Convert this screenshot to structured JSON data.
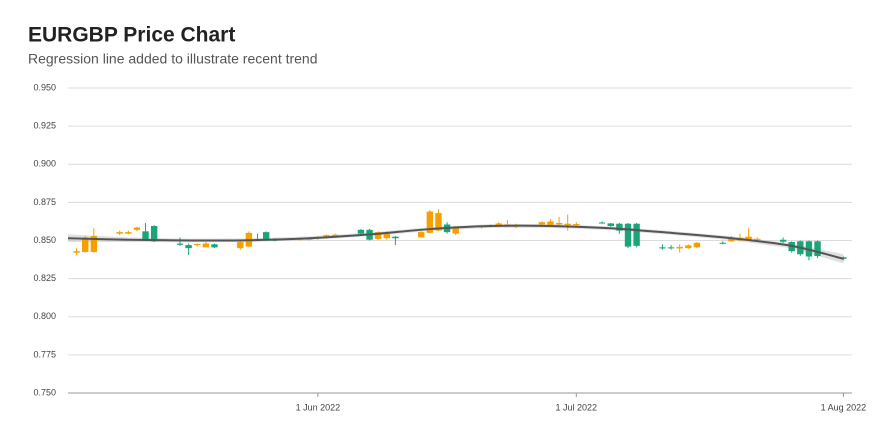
{
  "chart_data": {
    "type": "candlestick",
    "title": "EURGBP Price Chart",
    "subtitle": "Regression line added to illustrate recent trend",
    "up_color": "#f5a000",
    "down_color": "#1aa578",
    "grid": true,
    "xlim": [
      "2022-05-03",
      "2022-08-02"
    ],
    "xticks": [
      {
        "value": "2022-06-01",
        "label": "1 Jun 2022"
      },
      {
        "value": "2022-07-01",
        "label": "1 Jul 2022"
      },
      {
        "value": "2022-08-01",
        "label": "1 Aug 2022"
      }
    ],
    "ylim": [
      0.75,
      0.95
    ],
    "yticks": [
      {
        "value": 0.75,
        "label": "0.750"
      },
      {
        "value": 0.775,
        "label": "0.775"
      },
      {
        "value": 0.8,
        "label": "0.800"
      },
      {
        "value": 0.825,
        "label": "0.825"
      },
      {
        "value": 0.85,
        "label": "0.850"
      },
      {
        "value": 0.875,
        "label": "0.875"
      },
      {
        "value": 0.9,
        "label": "0.900"
      },
      {
        "value": 0.925,
        "label": "0.925"
      },
      {
        "value": 0.95,
        "label": "0.950"
      }
    ],
    "x": [
      "2022-05-04",
      "2022-05-05",
      "2022-05-06",
      "2022-05-09",
      "2022-05-10",
      "2022-05-11",
      "2022-05-12",
      "2022-05-13",
      "2022-05-16",
      "2022-05-17",
      "2022-05-18",
      "2022-05-19",
      "2022-05-20",
      "2022-05-23",
      "2022-05-24",
      "2022-05-25",
      "2022-05-26",
      "2022-05-27",
      "2022-05-30",
      "2022-05-31",
      "2022-06-01",
      "2022-06-02",
      "2022-06-03",
      "2022-06-06",
      "2022-06-07",
      "2022-06-08",
      "2022-06-09",
      "2022-06-10",
      "2022-06-13",
      "2022-06-14",
      "2022-06-15",
      "2022-06-16",
      "2022-06-17",
      "2022-06-20",
      "2022-06-21",
      "2022-06-22",
      "2022-06-23",
      "2022-06-24",
      "2022-06-27",
      "2022-06-28",
      "2022-06-29",
      "2022-06-30",
      "2022-07-01",
      "2022-07-04",
      "2022-07-05",
      "2022-07-06",
      "2022-07-07",
      "2022-07-08",
      "2022-07-11",
      "2022-07-12",
      "2022-07-13",
      "2022-07-14",
      "2022-07-15",
      "2022-07-18",
      "2022-07-19",
      "2022-07-20",
      "2022-07-21",
      "2022-07-22",
      "2022-07-25",
      "2022-07-26",
      "2022-07-27",
      "2022-07-28",
      "2022-07-29",
      "2022-08-01"
    ],
    "open": [
      0.842,
      0.8425,
      0.8425,
      0.8545,
      0.8545,
      0.857,
      0.856,
      0.8595,
      0.848,
      0.847,
      0.847,
      0.8455,
      0.8475,
      0.845,
      0.846,
      0.851,
      0.8555,
      0.8505,
      0.8505,
      0.8505,
      0.8515,
      0.8525,
      0.853,
      0.857,
      0.857,
      0.851,
      0.8515,
      0.8525,
      0.852,
      0.855,
      0.8565,
      0.8605,
      0.8545,
      0.859,
      0.8592,
      0.8595,
      0.8595,
      0.859,
      0.8605,
      0.8602,
      0.8605,
      0.86,
      0.86,
      0.8618,
      0.8612,
      0.861,
      0.861,
      0.861,
      0.8455,
      0.8455,
      0.8448,
      0.845,
      0.8455,
      0.8485,
      0.8495,
      0.85,
      0.8505,
      0.8505,
      0.8505,
      0.849,
      0.8495,
      0.8495,
      0.8495,
      0.839
    ],
    "high": [
      0.845,
      0.853,
      0.858,
      0.8565,
      0.8565,
      0.859,
      0.8615,
      0.86,
      0.852,
      0.848,
      0.848,
      0.849,
      0.848,
      0.85,
      0.856,
      0.8545,
      0.856,
      0.8515,
      0.8515,
      0.852,
      0.853,
      0.854,
      0.8545,
      0.8575,
      0.8575,
      0.856,
      0.856,
      0.853,
      0.856,
      0.87,
      0.8705,
      0.862,
      0.8595,
      0.86,
      0.8605,
      0.862,
      0.8635,
      0.861,
      0.8625,
      0.864,
      0.8655,
      0.867,
      0.862,
      0.8625,
      0.8615,
      0.8615,
      0.8615,
      0.8615,
      0.8475,
      0.847,
      0.8475,
      0.8475,
      0.849,
      0.8495,
      0.853,
      0.8545,
      0.858,
      0.852,
      0.852,
      0.8495,
      0.85,
      0.85,
      0.85,
      0.8395
    ],
    "low": [
      0.8405,
      0.842,
      0.842,
      0.8535,
      0.854,
      0.856,
      0.85,
      0.849,
      0.8465,
      0.8405,
      0.846,
      0.8455,
      0.845,
      0.844,
      0.8455,
      0.8495,
      0.85,
      0.8495,
      0.85,
      0.85,
      0.8505,
      0.852,
      0.8525,
      0.8535,
      0.85,
      0.8505,
      0.8505,
      0.847,
      0.852,
      0.8545,
      0.856,
      0.8545,
      0.8535,
      0.858,
      0.8585,
      0.859,
      0.859,
      0.858,
      0.86,
      0.86,
      0.86,
      0.8565,
      0.859,
      0.861,
      0.859,
      0.8545,
      0.845,
      0.8455,
      0.844,
      0.844,
      0.842,
      0.8445,
      0.845,
      0.8475,
      0.849,
      0.8495,
      0.85,
      0.85,
      0.8485,
      0.842,
      0.84,
      0.837,
      0.8385,
      0.837
    ],
    "close": [
      0.843,
      0.852,
      0.853,
      0.8555,
      0.8555,
      0.8585,
      0.851,
      0.8495,
      0.8472,
      0.845,
      0.8478,
      0.848,
      0.8455,
      0.849,
      0.855,
      0.85,
      0.8505,
      0.85,
      0.8512,
      0.8515,
      0.8522,
      0.8535,
      0.8538,
      0.8545,
      0.8505,
      0.8555,
      0.855,
      0.8515,
      0.8555,
      0.869,
      0.868,
      0.8555,
      0.859,
      0.8597,
      0.86,
      0.8612,
      0.8605,
      0.8598,
      0.862,
      0.8625,
      0.8615,
      0.861,
      0.8608,
      0.8612,
      0.8595,
      0.8565,
      0.846,
      0.8465,
      0.8448,
      0.845,
      0.8458,
      0.8468,
      0.8485,
      0.848,
      0.852,
      0.8518,
      0.8525,
      0.8512,
      0.8492,
      0.843,
      0.841,
      0.8395,
      0.8398,
      0.838
    ],
    "trend": {
      "color": "#555555",
      "band_color": "#cccccc",
      "x": [
        "2022-05-03",
        "2022-05-10",
        "2022-05-17",
        "2022-05-24",
        "2022-05-31",
        "2022-06-07",
        "2022-06-14",
        "2022-06-21",
        "2022-06-28",
        "2022-07-05",
        "2022-07-12",
        "2022-07-19",
        "2022-07-26",
        "2022-08-01"
      ],
      "values": [
        0.8515,
        0.8505,
        0.85,
        0.8502,
        0.8515,
        0.854,
        0.8575,
        0.8595,
        0.8595,
        0.858,
        0.855,
        0.8515,
        0.8465,
        0.838
      ],
      "lower": [
        0.849,
        0.849,
        0.8488,
        0.849,
        0.8503,
        0.8528,
        0.8563,
        0.8583,
        0.8583,
        0.8568,
        0.8538,
        0.8502,
        0.8448,
        0.835
      ],
      "upper": [
        0.854,
        0.852,
        0.8512,
        0.8514,
        0.8527,
        0.8552,
        0.8587,
        0.8607,
        0.8607,
        0.8592,
        0.8562,
        0.8528,
        0.8482,
        0.841
      ]
    }
  }
}
